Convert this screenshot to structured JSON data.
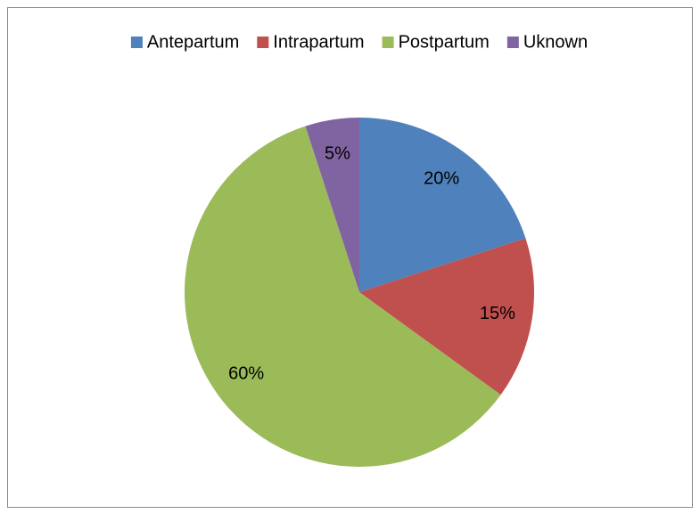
{
  "chart_data": {
    "type": "pie",
    "categories": [
      "Antepartum",
      "Intrapartum",
      "Postpartum",
      "Uknown"
    ],
    "values": [
      20,
      15,
      60,
      5
    ],
    "value_labels": [
      "20%",
      "15%",
      "60%",
      "5%"
    ],
    "colors": [
      "#4f81bd",
      "#c0504d",
      "#9bbb59",
      "#8064a2"
    ],
    "legend": "top"
  }
}
